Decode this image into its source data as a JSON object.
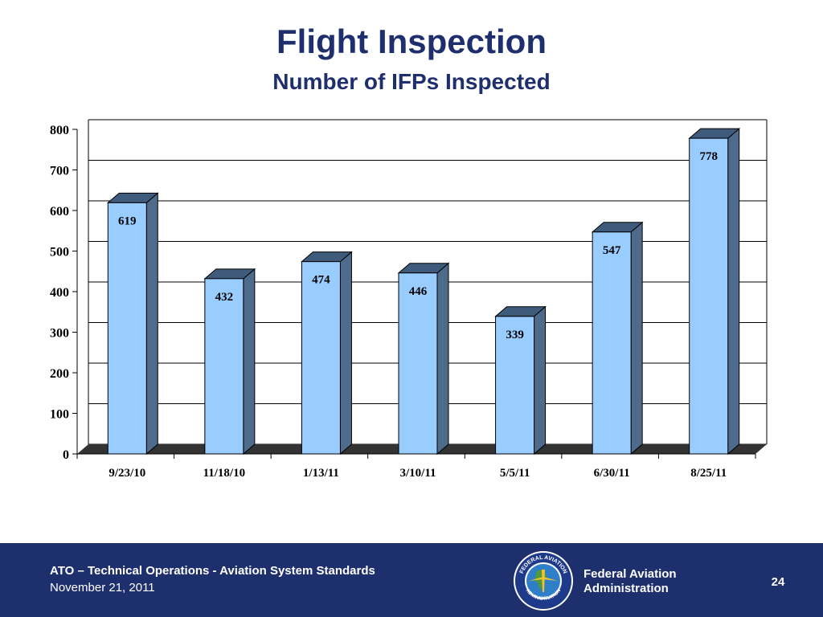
{
  "slide": {
    "title": "Flight Inspection",
    "subtitle": "Number of IFPs Inspected"
  },
  "chart_data": {
    "type": "bar",
    "categories": [
      "9/23/10",
      "11/18/10",
      "1/13/11",
      "3/10/11",
      "5/5/11",
      "6/30/11",
      "8/25/11"
    ],
    "values": [
      619,
      432,
      474,
      446,
      339,
      547,
      778
    ],
    "ylim": [
      0,
      800
    ],
    "yticks": [
      "0",
      "100",
      "200",
      "300",
      "400",
      "500",
      "600",
      "700",
      "800"
    ],
    "grid": true,
    "legend": "none",
    "three_d": true,
    "colors": {
      "bar_front": "#99ccff",
      "bar_side": "#4f6b8c",
      "bar_top": "#3f5b7c",
      "floor": "#333333",
      "grid": "#000000"
    }
  },
  "footer": {
    "organization": "ATO – Technical Operations - Aviation System Standards",
    "date": "November 21, 2011",
    "agency_line1": "Federal Aviation",
    "agency_line2": "Administration",
    "page_number": "24",
    "background": "#1e2f6d",
    "seal": {
      "outer_text": "FEDERAL AVIATION",
      "bottom_text": "ADMINISTRATION"
    }
  }
}
